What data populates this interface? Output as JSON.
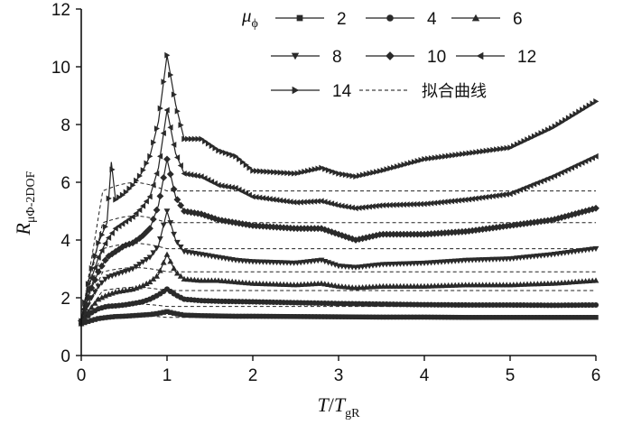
{
  "chart_data": {
    "type": "line",
    "xlabel": {
      "main": "T",
      "sep": "/",
      "main2": "T",
      "sub": "gR"
    },
    "ylabel": {
      "main": "R",
      "sub": "μΦ-2DOF"
    },
    "xlim": [
      0,
      6
    ],
    "ylim": [
      0,
      12
    ],
    "x_ticks": [
      0,
      1,
      2,
      3,
      4,
      5,
      6
    ],
    "y_ticks": [
      0,
      2,
      4,
      6,
      8,
      10,
      12
    ],
    "grid": false,
    "legend_position": "top-right",
    "legend_title": "μ",
    "legend_title_sub": "ϕ",
    "fit_label": "拟合曲线",
    "series": [
      {
        "name": "2",
        "marker": "square",
        "x": [
          0,
          0.1,
          0.2,
          0.3,
          0.4,
          0.5,
          0.6,
          0.7,
          0.8,
          0.9,
          1.0,
          1.1,
          1.2,
          1.4,
          1.6,
          1.8,
          2.0,
          2.5,
          3.0,
          3.5,
          4.0,
          4.5,
          5.0,
          5.5,
          6.0
        ],
        "y": [
          1.1,
          1.2,
          1.28,
          1.32,
          1.35,
          1.36,
          1.38,
          1.4,
          1.42,
          1.46,
          1.52,
          1.45,
          1.4,
          1.38,
          1.37,
          1.36,
          1.36,
          1.35,
          1.34,
          1.33,
          1.33,
          1.32,
          1.32,
          1.32,
          1.32
        ],
        "fit": 1.32
      },
      {
        "name": "4",
        "marker": "circle",
        "x": [
          0,
          0.1,
          0.2,
          0.3,
          0.4,
          0.5,
          0.6,
          0.7,
          0.8,
          0.9,
          1.0,
          1.1,
          1.2,
          1.4,
          1.6,
          1.8,
          2.0,
          2.5,
          3.0,
          3.5,
          4.0,
          4.5,
          5.0,
          5.5,
          6.0
        ],
        "y": [
          1.1,
          1.45,
          1.62,
          1.7,
          1.72,
          1.75,
          1.8,
          1.85,
          1.95,
          2.1,
          2.3,
          2.1,
          1.95,
          1.9,
          1.88,
          1.87,
          1.86,
          1.83,
          1.8,
          1.78,
          1.76,
          1.75,
          1.75,
          1.74,
          1.75
        ],
        "fit": 1.7
      },
      {
        "name": "6",
        "marker": "triangle-up",
        "x": [
          0,
          0.1,
          0.2,
          0.3,
          0.4,
          0.5,
          0.6,
          0.7,
          0.8,
          0.9,
          1.0,
          1.1,
          1.2,
          1.4,
          1.6,
          1.8,
          2.0,
          2.5,
          2.8,
          3.0,
          3.2,
          3.5,
          4.0,
          4.5,
          5.0,
          5.5,
          6.0
        ],
        "y": [
          1.1,
          1.6,
          1.95,
          2.1,
          2.2,
          2.25,
          2.3,
          2.4,
          2.55,
          2.8,
          3.5,
          2.9,
          2.65,
          2.6,
          2.6,
          2.55,
          2.5,
          2.45,
          2.5,
          2.4,
          2.35,
          2.4,
          2.4,
          2.45,
          2.45,
          2.5,
          2.6
        ],
        "fit": 2.25
      },
      {
        "name": "8",
        "marker": "triangle-down",
        "x": [
          0,
          0.1,
          0.2,
          0.3,
          0.4,
          0.5,
          0.6,
          0.7,
          0.8,
          0.9,
          1.0,
          1.1,
          1.2,
          1.4,
          1.6,
          1.8,
          2.0,
          2.5,
          2.8,
          3.0,
          3.2,
          3.5,
          4.0,
          4.5,
          5.0,
          5.5,
          6.0
        ],
        "y": [
          1.15,
          1.9,
          2.4,
          2.7,
          2.8,
          2.9,
          3.0,
          3.2,
          3.4,
          3.8,
          5.0,
          4.0,
          3.6,
          3.5,
          3.4,
          3.3,
          3.25,
          3.2,
          3.3,
          3.1,
          3.05,
          3.15,
          3.2,
          3.3,
          3.35,
          3.5,
          3.7
        ],
        "fit": 2.9
      },
      {
        "name": "10",
        "marker": "diamond",
        "x": [
          0,
          0.1,
          0.2,
          0.3,
          0.4,
          0.5,
          0.6,
          0.7,
          0.8,
          0.9,
          1.0,
          1.1,
          1.2,
          1.4,
          1.6,
          1.8,
          2.0,
          2.5,
          2.8,
          3.0,
          3.2,
          3.5,
          4.0,
          4.5,
          5.0,
          5.5,
          6.0
        ],
        "y": [
          1.2,
          2.2,
          2.9,
          3.4,
          3.6,
          3.8,
          3.9,
          4.1,
          4.4,
          5.2,
          6.8,
          5.5,
          5.0,
          4.9,
          4.7,
          4.6,
          4.5,
          4.4,
          4.4,
          4.2,
          4.0,
          4.2,
          4.2,
          4.3,
          4.5,
          4.7,
          5.1
        ],
        "fit": 3.7
      },
      {
        "name": "12",
        "marker": "triangle-left",
        "x": [
          0,
          0.1,
          0.2,
          0.3,
          0.4,
          0.5,
          0.6,
          0.7,
          0.8,
          0.9,
          1.0,
          1.1,
          1.2,
          1.4,
          1.6,
          1.8,
          2.0,
          2.5,
          2.8,
          3.0,
          3.2,
          3.5,
          4.0,
          4.5,
          5.0,
          5.5,
          6.0
        ],
        "y": [
          1.2,
          2.5,
          3.4,
          4.0,
          4.4,
          4.6,
          4.8,
          5.1,
          5.5,
          6.5,
          8.5,
          7.0,
          6.3,
          6.2,
          5.9,
          5.8,
          5.5,
          5.3,
          5.35,
          5.2,
          5.1,
          5.2,
          5.25,
          5.4,
          5.6,
          6.2,
          6.9
        ],
        "fit": 4.6
      },
      {
        "name": "14",
        "marker": "triangle-right",
        "x": [
          0,
          0.1,
          0.2,
          0.3,
          0.35,
          0.4,
          0.5,
          0.6,
          0.7,
          0.8,
          0.9,
          1.0,
          1.1,
          1.2,
          1.4,
          1.6,
          1.8,
          2.0,
          2.5,
          2.8,
          3.0,
          3.2,
          3.5,
          4.0,
          4.5,
          5.0,
          5.5,
          6.0
        ],
        "y": [
          1.2,
          2.8,
          3.9,
          4.6,
          6.7,
          5.4,
          5.6,
          5.9,
          6.3,
          6.9,
          8.1,
          10.4,
          8.7,
          7.5,
          7.5,
          7.1,
          6.9,
          6.4,
          6.3,
          6.5,
          6.3,
          6.2,
          6.4,
          6.8,
          7.0,
          7.2,
          7.9,
          8.8
        ],
        "fit": 5.7
      }
    ]
  }
}
